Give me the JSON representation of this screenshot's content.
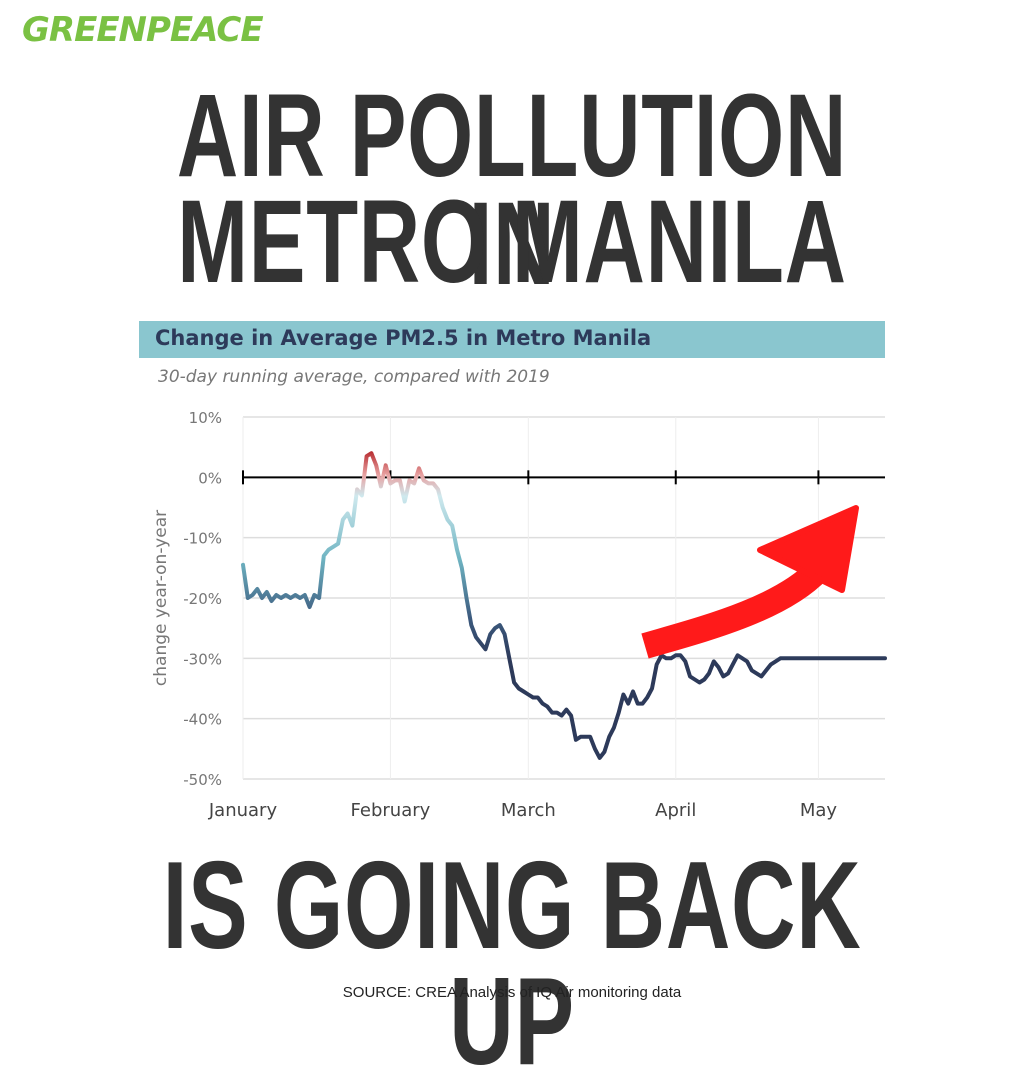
{
  "brand": {
    "logo_text": "GREENPEACE",
    "logo_color": "#7ac143"
  },
  "headline": {
    "line1": "AIR POLLUTION IN",
    "line2": "METRO MANILA",
    "line3": "IS GOING BACK UP"
  },
  "source": "SOURCE: CREA Analysis of IQ Air monitoring data",
  "chart_data": {
    "type": "line",
    "title": "Change in Average PM2.5 in Metro Manila",
    "subtitle": "30-day running average, compared with 2019",
    "ylabel": "change year-on-year",
    "xlabel": "",
    "ylim": [
      -50,
      10
    ],
    "yticks": [
      10,
      0,
      -10,
      -20,
      -30,
      -40,
      -50
    ],
    "ytick_labels": [
      "10%",
      "0%",
      "-10%",
      "-20%",
      "-30%",
      "-40%",
      "-50%"
    ],
    "xlim": [
      0,
      135
    ],
    "xticks": [
      0,
      31,
      60,
      91,
      121
    ],
    "xtick_labels": [
      "January",
      "February",
      "March",
      "April",
      "May"
    ],
    "grid": true,
    "colors": {
      "negative": "#2d3a5a",
      "mid": "#8ac6cf",
      "positive": "#b5252a",
      "zero_line": "#000000",
      "arrow": "#ff0000"
    },
    "annotation": "red upward arrow indicating rising trend",
    "series": [
      {
        "x": [
          0,
          1,
          2,
          3,
          4,
          5,
          6,
          7,
          8,
          9,
          10,
          11,
          12,
          13,
          14,
          15,
          16,
          17,
          18,
          19,
          20,
          21,
          22,
          23,
          24,
          25,
          26,
          27,
          28,
          29,
          30,
          31,
          32,
          33,
          34,
          35,
          36,
          37,
          38,
          39,
          40,
          41,
          42,
          43,
          44,
          45,
          46,
          47,
          48,
          49,
          50,
          51,
          52,
          53,
          54,
          55,
          56,
          57,
          58,
          59,
          60,
          61,
          62,
          63,
          64,
          65,
          66,
          67,
          68,
          69,
          70,
          71,
          72,
          73,
          74,
          75,
          76,
          77,
          78,
          79,
          80,
          81,
          82,
          83,
          84,
          85,
          86,
          87,
          88,
          89,
          90,
          91,
          92,
          93,
          94,
          95,
          96,
          97,
          98,
          99,
          100,
          101,
          102,
          103,
          104,
          105,
          106,
          107,
          108,
          109,
          110,
          111,
          112,
          113,
          114,
          115,
          116,
          117,
          118,
          119,
          120,
          121,
          122,
          123,
          124,
          125,
          126,
          127,
          128,
          129,
          130,
          131,
          132,
          133,
          134,
          135
        ],
        "values": [
          -14.5,
          -20,
          -19.5,
          -18.5,
          -20,
          -19,
          -20.5,
          -19.5,
          -20,
          -19.5,
          -20,
          -19.5,
          -20,
          -19.5,
          -21.5,
          -19.5,
          -20,
          -13,
          -12,
          -11.5,
          -11,
          -7,
          -6,
          -8,
          -2,
          -3,
          3.5,
          4,
          2,
          -1.5,
          2,
          -1,
          -0.5,
          -0.5,
          -4,
          -0.5,
          -1,
          1.5,
          -0.5,
          -1,
          -1,
          -2,
          -5,
          -7,
          -8,
          -12,
          -15,
          -20,
          -24.5,
          -26.5,
          -27.5,
          -28.5,
          -26,
          -25,
          -24.5,
          -26,
          -30,
          -34,
          -35,
          -35.5,
          -36,
          -36.5,
          -36.5,
          -37.5,
          -38,
          -39,
          -39,
          -39.5,
          -38.5,
          -39.5,
          -43.5,
          -43,
          -43,
          -43,
          -45,
          -46.5,
          -45.5,
          -43,
          -41.5,
          -39,
          -36,
          -37.5,
          -35.5,
          -37.5,
          -37.5,
          -36.5,
          -35,
          -31,
          -29.5,
          -30,
          -30,
          -29.5,
          -29.5,
          -30.5,
          -33,
          -33.5,
          -34,
          -33.5,
          -32.5,
          -30.5,
          -31.5,
          -33,
          -32.5,
          -31,
          -29.5,
          -30,
          -30.5,
          -32,
          -32.5,
          -33,
          -32,
          -31,
          -30.5,
          -30,
          -30,
          -30,
          -30,
          -30,
          -30,
          -30,
          -30,
          -30,
          -30,
          -30,
          -30,
          -30,
          -30,
          -30,
          -30,
          -30,
          -30,
          -30,
          -30,
          -30,
          -30,
          -30
        ]
      }
    ]
  }
}
